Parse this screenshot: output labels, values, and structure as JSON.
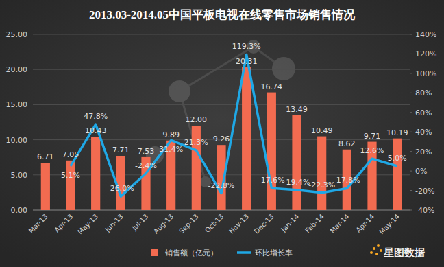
{
  "chart_data": {
    "type": "bar",
    "title": "2013.03-2014.05中国平板电视在线零售市场销售情况",
    "brand": "星图数据",
    "categories": [
      "Mar-13",
      "Apr-13",
      "May-13",
      "Jun-13",
      "Jul-13",
      "Aug-13",
      "Sep-13",
      "Oct-13",
      "Nov-13",
      "Dec-13",
      "Jan-14",
      "Feb-14",
      "Mar-14",
      "Apr-14",
      "May-14"
    ],
    "series": [
      {
        "name": "销售额（亿元）",
        "type": "bar",
        "color": "#f26b50",
        "values": [
          6.71,
          7.05,
          10.43,
          7.71,
          7.53,
          9.89,
          12,
          9.26,
          20.31,
          16.74,
          13.49,
          10.49,
          8.62,
          9.71,
          10.19
        ],
        "value_labels": [
          "6.71",
          "7.05",
          "10.43",
          "7.71",
          "7.53",
          "9.89",
          "12.00",
          "9.26",
          "20.31",
          "16.74",
          "13.49",
          "10.49",
          "8.62",
          "9.71",
          "10.19"
        ]
      },
      {
        "name": "环比增长率",
        "type": "line",
        "axis": "y2",
        "color": "#1fa8e6",
        "values": [
          null,
          5.1,
          47.8,
          -26,
          -2.4,
          31.4,
          21.3,
          -22.8,
          119.3,
          -17.6,
          -19.4,
          -22.3,
          -17.8,
          12.6,
          5
        ],
        "value_labels": [
          null,
          "5.1%",
          "47.8%",
          "-26.0%",
          "-2.4%",
          "31.4%",
          "21.3%",
          "-22.8%",
          "119.3%",
          "-17.6%",
          "-19.4%",
          "-22.3%",
          "-17.8%",
          "12.6%",
          "5.0%"
        ]
      }
    ],
    "ylim": [
      0,
      25
    ],
    "yticks": [
      {
        "value": 0,
        "label": "0.00"
      },
      {
        "value": 5,
        "label": "5.00"
      },
      {
        "value": 10,
        "label": "10.00"
      },
      {
        "value": 15,
        "label": "15.00"
      },
      {
        "value": 20,
        "label": "20.00"
      },
      {
        "value": 25,
        "label": "25.00"
      }
    ],
    "y2lim": [
      -40,
      140
    ],
    "y2ticks": [
      {
        "value": -40,
        "label": "-40%"
      },
      {
        "value": -20,
        "label": "-20%"
      },
      {
        "value": 0,
        "label": "0%"
      },
      {
        "value": 20,
        "label": "20%"
      },
      {
        "value": 40,
        "label": "40%"
      },
      {
        "value": 60,
        "label": "60%"
      },
      {
        "value": 80,
        "label": "80%"
      },
      {
        "value": 100,
        "label": "100%"
      },
      {
        "value": 120,
        "label": "120%"
      },
      {
        "value": 140,
        "label": "140%"
      }
    ],
    "grid": true,
    "data_labels": true,
    "legend": "bottom"
  }
}
